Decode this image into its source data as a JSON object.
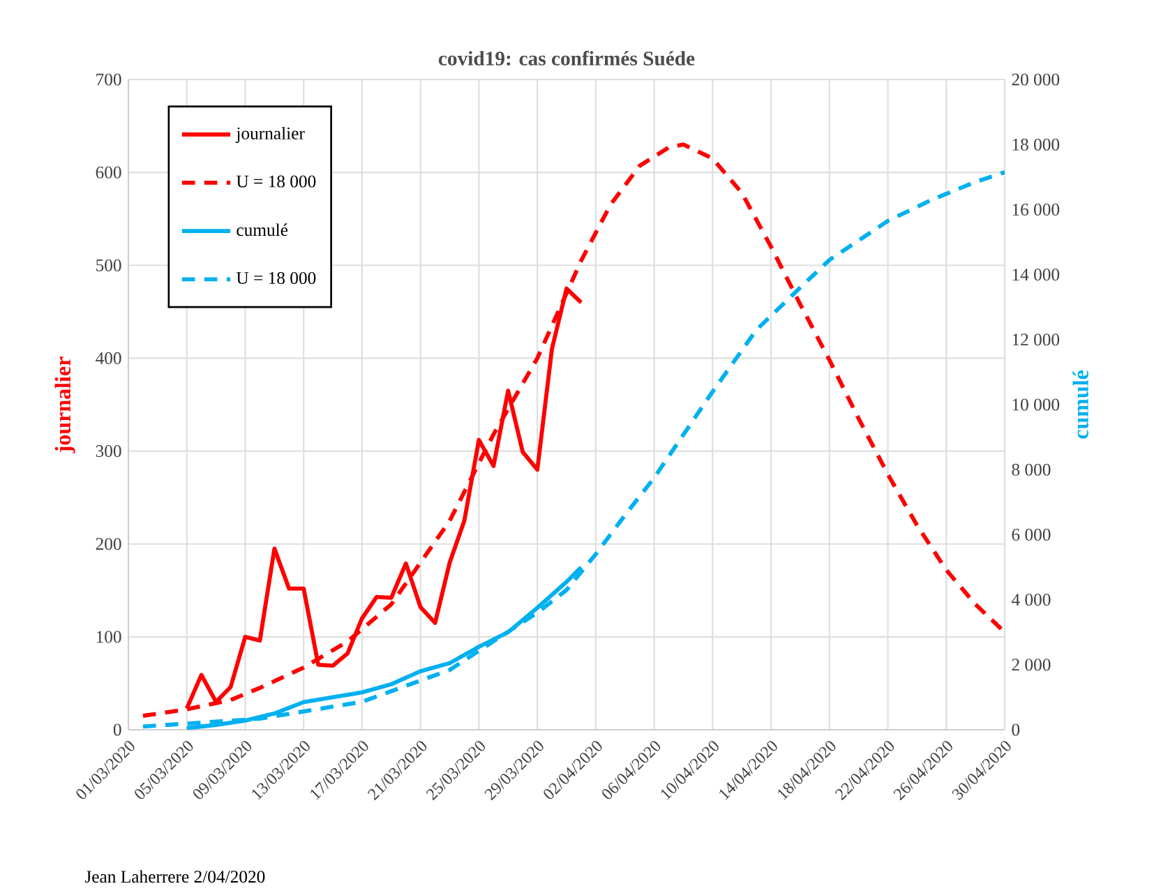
{
  "chart_data": {
    "type": "line",
    "title": "covid19: cas confirmés Suéde",
    "ylabel": "journalier",
    "y2label": "cumulé",
    "xlim": [
      "2020-03-01",
      "2020-04-30"
    ],
    "xticks": [
      {
        "value": "2020-03-01",
        "label": "01/03/2020"
      },
      {
        "value": "2020-03-05",
        "label": "05/03/2020"
      },
      {
        "value": "2020-03-09",
        "label": "09/03/2020"
      },
      {
        "value": "2020-03-13",
        "label": "13/03/2020"
      },
      {
        "value": "2020-03-17",
        "label": "17/03/2020"
      },
      {
        "value": "2020-03-21",
        "label": "21/03/2020"
      },
      {
        "value": "2020-03-25",
        "label": "25/03/2020"
      },
      {
        "value": "2020-03-29",
        "label": "29/03/2020"
      },
      {
        "value": "2020-04-02",
        "label": "02/04/2020"
      },
      {
        "value": "2020-04-06",
        "label": "06/04/2020"
      },
      {
        "value": "2020-04-10",
        "label": "10/04/2020"
      },
      {
        "value": "2020-04-14",
        "label": "14/04/2020"
      },
      {
        "value": "2020-04-18",
        "label": "18/04/2020"
      },
      {
        "value": "2020-04-22",
        "label": "22/04/2020"
      },
      {
        "value": "2020-04-26",
        "label": "26/04/2020"
      },
      {
        "value": "2020-04-30",
        "label": "30/04/2020"
      }
    ],
    "ylim": [
      0,
      700
    ],
    "yticks": [
      0,
      100,
      200,
      300,
      400,
      500,
      600,
      700
    ],
    "y2lim": [
      0,
      20000
    ],
    "y2ticks": [
      0,
      {
        "value": 2000,
        "label": "2 000"
      },
      {
        "value": 4000,
        "label": "4 000"
      },
      {
        "value": 6000,
        "label": "6 000"
      },
      {
        "value": 8000,
        "label": "8 000"
      },
      {
        "value": 10000,
        "label": "10 000"
      },
      {
        "value": 12000,
        "label": "12 000"
      },
      {
        "value": 14000,
        "label": "14 000"
      },
      {
        "value": 16000,
        "label": "16 000"
      },
      {
        "value": 18000,
        "label": "18 000"
      },
      {
        "value": 20000,
        "label": "20 000"
      }
    ],
    "grid": true,
    "legend": "top left",
    "series": [
      {
        "name": "journalier",
        "color": "#ff0000",
        "line_style": "solid",
        "x": [
          "2020-03-05",
          "2020-03-06",
          "2020-03-07",
          "2020-03-08",
          "2020-03-09",
          "2020-03-10",
          "2020-03-11",
          "2020-03-12",
          "2020-03-13",
          "2020-03-14",
          "2020-03-15",
          "2020-03-16",
          "2020-03-17",
          "2020-03-18",
          "2020-03-19",
          "2020-03-20",
          "2020-03-21",
          "2020-03-22",
          "2020-03-23",
          "2020-03-24",
          "2020-03-25",
          "2020-03-26",
          "2020-03-27",
          "2020-03-28",
          "2020-03-29",
          "2020-03-30",
          "2020-03-31",
          "2020-04-01"
        ],
        "values": [
          23,
          59,
          30,
          46,
          100,
          96,
          195,
          152,
          152,
          70,
          69,
          82,
          120,
          143,
          142,
          179,
          132,
          115,
          180,
          225,
          312,
          284,
          365,
          299,
          280,
          410,
          475,
          460
        ]
      },
      {
        "name": "U = 18 000",
        "color": "#ff0000",
        "line_style": "dashed",
        "x": [
          "2020-03-02",
          "2020-03-05",
          "2020-03-08",
          "2020-03-10",
          "2020-03-13",
          "2020-03-16",
          "2020-03-19",
          "2020-03-21",
          "2020-03-23",
          "2020-03-26",
          "2020-03-29",
          "2020-04-01",
          "2020-04-03",
          "2020-04-05",
          "2020-04-07",
          "2020-04-08",
          "2020-04-10",
          "2020-04-12",
          "2020-04-14",
          "2020-04-16",
          "2020-04-18",
          "2020-04-20",
          "2020-04-22",
          "2020-04-24",
          "2020-04-26",
          "2020-04-28",
          "2020-04-30"
        ],
        "values": [
          15,
          22,
          32,
          45,
          67,
          95,
          135,
          180,
          225,
          318,
          400,
          505,
          565,
          607,
          627,
          630,
          615,
          578,
          520,
          458,
          398,
          335,
          275,
          220,
          172,
          135,
          105
        ]
      },
      {
        "name": "cumulé",
        "color": "#00b0f0",
        "line_style": "solid",
        "axis": "y2",
        "x": [
          "2020-03-05",
          "2020-03-07",
          "2020-03-09",
          "2020-03-11",
          "2020-03-13",
          "2020-03-15",
          "2020-03-17",
          "2020-03-19",
          "2020-03-21",
          "2020-03-23",
          "2020-03-25",
          "2020-03-27",
          "2020-03-29",
          "2020-03-31",
          "2020-04-01"
        ],
        "values": [
          50,
          150,
          280,
          500,
          850,
          1000,
          1150,
          1400,
          1800,
          2050,
          2550,
          3000,
          3750,
          4550,
          5000
        ]
      },
      {
        "name": "U = 18 000",
        "color": "#00b0f0",
        "line_style": "dashed",
        "axis": "y2",
        "x": [
          "2020-03-02",
          "2020-03-10",
          "2020-03-17",
          "2020-03-23",
          "2020-03-29",
          "2020-03-31",
          "2020-04-02",
          "2020-04-04",
          "2020-04-06",
          "2020-04-10",
          "2020-04-13",
          "2020-04-16",
          "2020-04-18",
          "2020-04-22",
          "2020-04-25",
          "2020-04-28",
          "2020-04-30"
        ],
        "values": [
          100,
          340,
          860,
          1840,
          3600,
          4300,
          5400,
          6600,
          7750,
          10400,
          12300,
          13600,
          14450,
          15650,
          16300,
          16850,
          17150
        ]
      }
    ],
    "annotations": [
      "Jean Laherrere  2/04/2020"
    ]
  }
}
